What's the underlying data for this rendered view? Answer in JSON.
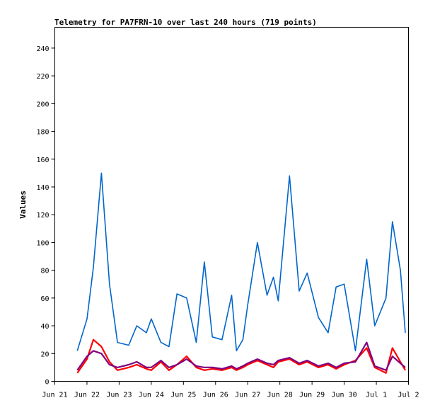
{
  "chart_data": {
    "type": "line",
    "title": "Telemetry for PA7FRN-10 over last 240 hours (719 points)",
    "ylabel": "Values",
    "xlabel": "",
    "ylim": [
      0,
      255
    ],
    "xlim": [
      "Jun 21",
      "Jul 2"
    ],
    "yticks": [
      0,
      20,
      40,
      60,
      80,
      100,
      120,
      140,
      160,
      180,
      200,
      220,
      240
    ],
    "xticks": [
      "Jun 21",
      "Jun 22",
      "Jun 23",
      "Jun 24",
      "Jun 25",
      "Jun 26",
      "Jun 27",
      "Jun 28",
      "Jun 29",
      "Jun 30",
      "Jul 1",
      "Jul 2"
    ],
    "grid": false,
    "legend": "none",
    "x_unit": "day",
    "x": [
      0.7,
      1.0,
      1.2,
      1.45,
      1.7,
      1.95,
      2.3,
      2.55,
      2.85,
      3.0,
      3.3,
      3.55,
      3.8,
      4.1,
      4.4,
      4.65,
      4.9,
      5.2,
      5.5,
      5.65,
      5.85,
      6.0,
      6.3,
      6.6,
      6.8,
      6.95,
      7.3,
      7.6,
      7.85,
      8.2,
      8.5,
      8.75,
      9.0,
      9.35,
      9.7,
      9.95,
      10.3,
      10.5,
      10.75,
      10.9
    ],
    "series": [
      {
        "color": "#0066cc",
        "values": [
          22,
          45,
          82,
          150,
          70,
          28,
          26,
          40,
          35,
          45,
          28,
          25,
          63,
          60,
          28,
          86,
          32,
          30,
          62,
          22,
          30,
          55,
          100,
          62,
          75,
          58,
          148,
          65,
          78,
          46,
          35,
          68,
          70,
          22,
          88,
          40,
          60,
          115,
          80,
          35
        ]
      },
      {
        "color": "#ff0000",
        "values": [
          6,
          16,
          30,
          25,
          14,
          8,
          10,
          12,
          9,
          8,
          14,
          8,
          12,
          18,
          10,
          8,
          9,
          8,
          10,
          8,
          10,
          12,
          15,
          12,
          10,
          14,
          16,
          12,
          14,
          10,
          12,
          9,
          12,
          15,
          24,
          10,
          6,
          24,
          14,
          8
        ]
      },
      {
        "color": "#800080",
        "values": [
          8,
          18,
          22,
          20,
          12,
          10,
          12,
          14,
          10,
          10,
          15,
          10,
          12,
          16,
          11,
          10,
          10,
          9,
          11,
          9,
          11,
          13,
          16,
          13,
          12,
          15,
          17,
          13,
          15,
          11,
          13,
          10,
          13,
          14,
          28,
          11,
          8,
          18,
          13,
          10
        ]
      }
    ]
  }
}
